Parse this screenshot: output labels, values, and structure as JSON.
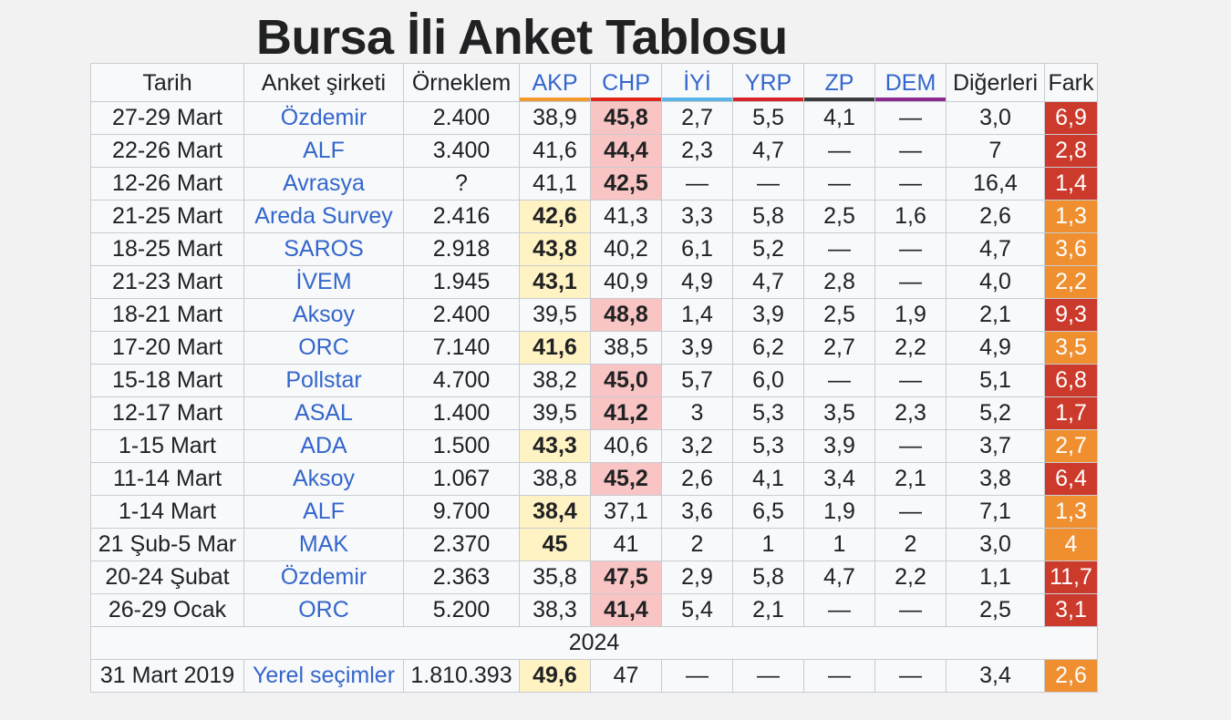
{
  "title": "Bursa İli Anket Tablosu",
  "headers": {
    "tarih": "Tarih",
    "firma": "Anket şirketi",
    "orneklem": "Örneklem",
    "akp": "AKP",
    "chp": "CHP",
    "iyi": "İYİ",
    "yrp": "YRP",
    "zp": "ZP",
    "dem": "DEM",
    "digerleri": "Diğerleri",
    "fark": "Fark"
  },
  "party_colors": {
    "akp": "#f39a2e",
    "chp": "#e2231a",
    "iyi": "#5bb5e8",
    "yrp": "#d8232a",
    "zp": "#3b3b3b",
    "dem": "#8a2a8f"
  },
  "fark_colors": {
    "chp": "#cc3a2c",
    "akp": "#ef8f30"
  },
  "rows": [
    {
      "tarih": "27-29 Mart",
      "firma": "Özdemir",
      "orneklem": "2.400",
      "akp": "38,9",
      "chp": "45,8",
      "iyi": "2,7",
      "yrp": "5,5",
      "zp": "4,1",
      "dem": "—",
      "digerleri": "3,0",
      "fark": "6,9",
      "lead": "chp"
    },
    {
      "tarih": "22-26 Mart",
      "firma": "ALF",
      "orneklem": "3.400",
      "akp": "41,6",
      "chp": "44,4",
      "iyi": "2,3",
      "yrp": "4,7",
      "zp": "—",
      "dem": "—",
      "digerleri": "7",
      "fark": "2,8",
      "lead": "chp"
    },
    {
      "tarih": "12-26 Mart",
      "firma": "Avrasya",
      "orneklem": "?",
      "akp": "41,1",
      "chp": "42,5",
      "iyi": "—",
      "yrp": "—",
      "zp": "—",
      "dem": "—",
      "digerleri": "16,4",
      "fark": "1,4",
      "lead": "chp"
    },
    {
      "tarih": "21-25 Mart",
      "firma": "Areda Survey",
      "orneklem": "2.416",
      "akp": "42,6",
      "chp": "41,3",
      "iyi": "3,3",
      "yrp": "5,8",
      "zp": "2,5",
      "dem": "1,6",
      "digerleri": "2,6",
      "fark": "1,3",
      "lead": "akp"
    },
    {
      "tarih": "18-25 Mart",
      "firma": "SAROS",
      "orneklem": "2.918",
      "akp": "43,8",
      "chp": "40,2",
      "iyi": "6,1",
      "yrp": "5,2",
      "zp": "—",
      "dem": "—",
      "digerleri": "4,7",
      "fark": "3,6",
      "lead": "akp"
    },
    {
      "tarih": "21-23 Mart",
      "firma": "İVEM",
      "orneklem": "1.945",
      "akp": "43,1",
      "chp": "40,9",
      "iyi": "4,9",
      "yrp": "4,7",
      "zp": "2,8",
      "dem": "—",
      "digerleri": "4,0",
      "fark": "2,2",
      "lead": "akp"
    },
    {
      "tarih": "18-21 Mart",
      "firma": "Aksoy",
      "orneklem": "2.400",
      "akp": "39,5",
      "chp": "48,8",
      "iyi": "1,4",
      "yrp": "3,9",
      "zp": "2,5",
      "dem": "1,9",
      "digerleri": "2,1",
      "fark": "9,3",
      "lead": "chp"
    },
    {
      "tarih": "17-20 Mart",
      "firma": "ORC",
      "orneklem": "7.140",
      "akp": "41,6",
      "chp": "38,5",
      "iyi": "3,9",
      "yrp": "6,2",
      "zp": "2,7",
      "dem": "2,2",
      "digerleri": "4,9",
      "fark": "3,5",
      "lead": "akp"
    },
    {
      "tarih": "15-18 Mart",
      "firma": "Pollstar",
      "orneklem": "4.700",
      "akp": "38,2",
      "chp": "45,0",
      "iyi": "5,7",
      "yrp": "6,0",
      "zp": "—",
      "dem": "—",
      "digerleri": "5,1",
      "fark": "6,8",
      "lead": "chp"
    },
    {
      "tarih": "12-17 Mart",
      "firma": "ASAL",
      "orneklem": "1.400",
      "akp": "39,5",
      "chp": "41,2",
      "iyi": "3",
      "yrp": "5,3",
      "zp": "3,5",
      "dem": "2,3",
      "digerleri": "5,2",
      "fark": "1,7",
      "lead": "chp"
    },
    {
      "tarih": "1-15 Mart",
      "firma": "ADA",
      "orneklem": "1.500",
      "akp": "43,3",
      "chp": "40,6",
      "iyi": "3,2",
      "yrp": "5,3",
      "zp": "3,9",
      "dem": "—",
      "digerleri": "3,7",
      "fark": "2,7",
      "lead": "akp"
    },
    {
      "tarih": "11-14 Mart",
      "firma": "Aksoy",
      "orneklem": "1.067",
      "akp": "38,8",
      "chp": "45,2",
      "iyi": "2,6",
      "yrp": "4,1",
      "zp": "3,4",
      "dem": "2,1",
      "digerleri": "3,8",
      "fark": "6,4",
      "lead": "chp"
    },
    {
      "tarih": "1-14 Mart",
      "firma": "ALF",
      "orneklem": "9.700",
      "akp": "38,4",
      "chp": "37,1",
      "iyi": "3,6",
      "yrp": "6,5",
      "zp": "1,9",
      "dem": "—",
      "digerleri": "7,1",
      "fark": "1,3",
      "lead": "akp"
    },
    {
      "tarih": "21 Şub-5 Mar",
      "firma": "MAK",
      "orneklem": "2.370",
      "akp": "45",
      "chp": "41",
      "iyi": "2",
      "yrp": "1",
      "zp": "1",
      "dem": "2",
      "digerleri": "3,0",
      "fark": "4",
      "lead": "akp"
    },
    {
      "tarih": "20-24 Şubat",
      "firma": "Özdemir",
      "orneklem": "2.363",
      "akp": "35,8",
      "chp": "47,5",
      "iyi": "2,9",
      "yrp": "5,8",
      "zp": "4,7",
      "dem": "2,2",
      "digerleri": "1,1",
      "fark": "11,7",
      "lead": "chp"
    },
    {
      "tarih": "26-29 Ocak",
      "firma": "ORC",
      "orneklem": "5.200",
      "akp": "38,3",
      "chp": "41,4",
      "iyi": "5,4",
      "yrp": "2,1",
      "zp": "—",
      "dem": "—",
      "digerleri": "2,5",
      "fark": "3,1",
      "lead": "chp"
    }
  ],
  "section_label": "2024",
  "footer_row": {
    "tarih": "31 Mart 2019",
    "firma": "Yerel seçimler",
    "orneklem": "1.810.393",
    "akp": "49,6",
    "chp": "47",
    "iyi": "—",
    "yrp": "—",
    "zp": "—",
    "dem": "—",
    "digerleri": "3,4",
    "fark": "2,6",
    "lead": "akp"
  }
}
